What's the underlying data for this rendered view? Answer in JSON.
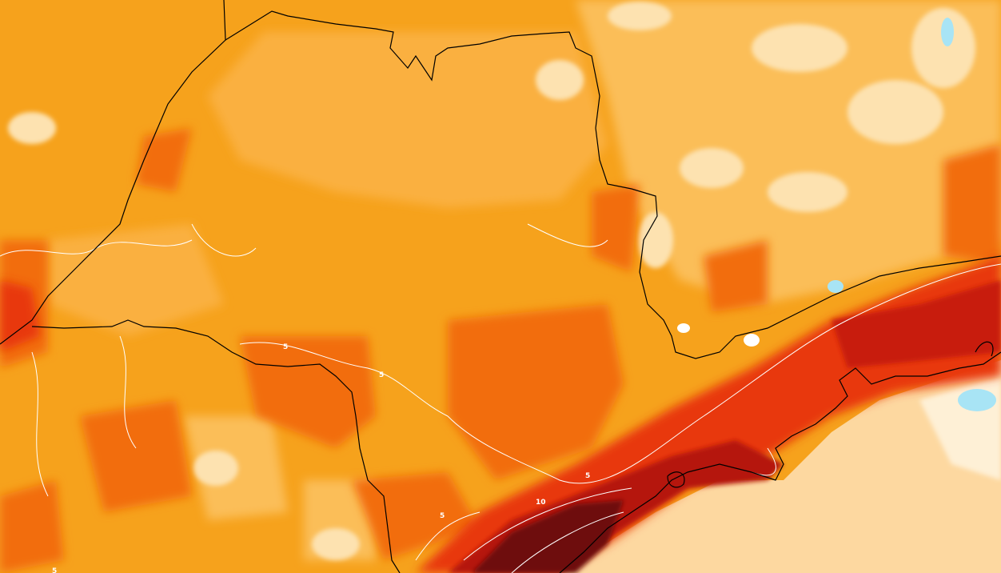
{
  "map": {
    "contour_labels": [
      {
        "id": "label-5-a",
        "text": "5"
      },
      {
        "id": "label-5-b",
        "text": "5"
      },
      {
        "id": "label-5-c",
        "text": "5"
      },
      {
        "id": "label-5-d",
        "text": "5"
      },
      {
        "id": "label-10",
        "text": "10"
      },
      {
        "id": "label-5-e",
        "text": "5"
      }
    ],
    "colors": {
      "base_orange": "#f6a21c",
      "light_orange": "#fbbe58",
      "pale": "#fde2b0",
      "orange_red": "#f26d0c",
      "red": "#e8380c",
      "dark_red": "#b51207",
      "maroon": "#6e0b0b",
      "ocean_peach": "#fdd8a0",
      "cyan": "#a8e4f5",
      "contour_white": "#ffffff",
      "border_black": "#000000"
    }
  }
}
